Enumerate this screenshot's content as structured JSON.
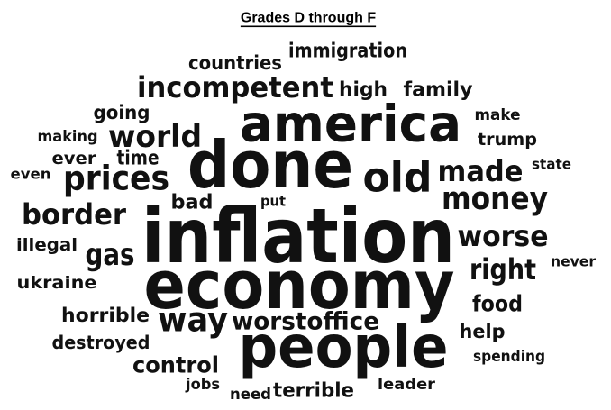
{
  "chart_data": {
    "type": "wordcloud",
    "title": "Grades D through F",
    "categories": [
      "immigration",
      "countries",
      "incompetent",
      "high",
      "family",
      "america",
      "going",
      "make",
      "world",
      "making",
      "trump",
      "done",
      "time",
      "ever",
      "old",
      "made",
      "state",
      "even",
      "prices",
      "money",
      "bad",
      "put",
      "border",
      "inflation",
      "gas",
      "illegal",
      "worse",
      "right",
      "never",
      "economy",
      "ukraine",
      "food",
      "way",
      "worstoffice",
      "horrible",
      "people",
      "help",
      "destroyed",
      "control",
      "spending",
      "jobs",
      "need",
      "terrible",
      "leader"
    ],
    "color": "#111111"
  }
}
